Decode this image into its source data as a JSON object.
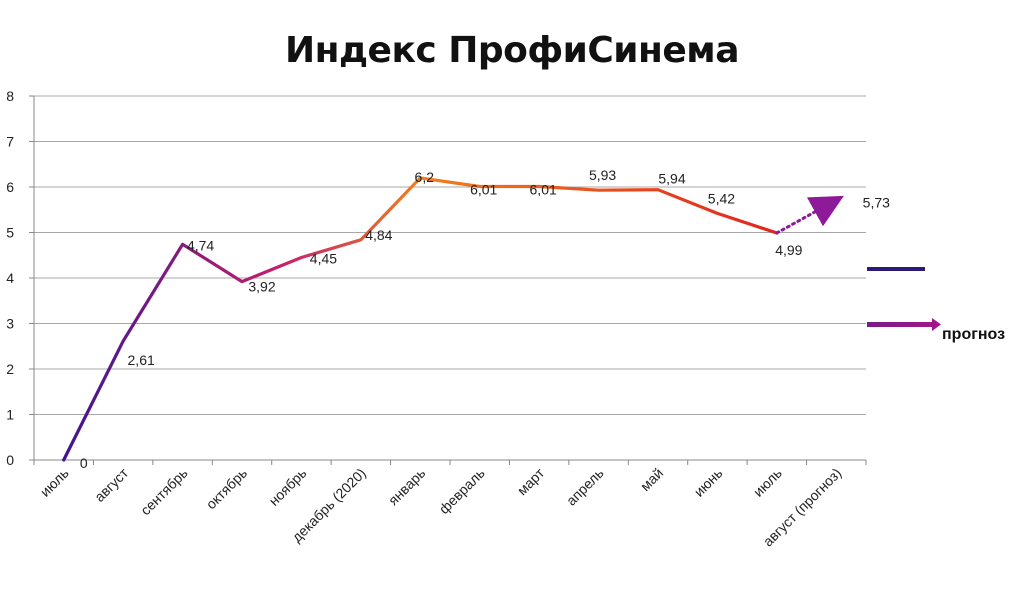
{
  "chart_data": {
    "type": "line",
    "title": "Индекс ПрофиСинема",
    "xlabel": "",
    "ylabel": "",
    "ylim": [
      0,
      8
    ],
    "yticks": [
      "0",
      "1",
      "2",
      "3",
      "4",
      "5",
      "6",
      "7",
      "8"
    ],
    "grid": true,
    "categories": [
      "июль",
      "август",
      "сентябрь",
      "октябрь",
      "ноябрь",
      "декабрь (2020)",
      "январь",
      "февраль",
      "март",
      "апрель",
      "май",
      "июнь",
      "июль",
      "август (прогноз)"
    ],
    "series": [
      {
        "values": [
          0,
          2.61,
          4.74,
          3.92,
          4.45,
          4.84,
          6.2,
          6.01,
          6.01,
          5.93,
          5.94,
          5.42,
          4.99,
          null
        ],
        "labels": [
          "0",
          "2,61",
          "4,74",
          "3,92",
          "4,45",
          "4,84",
          "6,2",
          "6,01",
          "6,01",
          "5,93",
          "5,94",
          "5,42",
          "4,99",
          ""
        ],
        "gradient": [
          "#3d1590",
          "#c21e6e",
          "#f07f1e",
          "#e0241f"
        ]
      },
      {
        "name": "прогноз",
        "values": [
          null,
          null,
          null,
          null,
          null,
          null,
          null,
          null,
          null,
          null,
          null,
          null,
          4.99,
          5.73
        ],
        "labels": [
          "",
          "",
          "",
          "",
          "",
          "",
          "",
          "",
          "",
          "",
          "",
          "",
          "",
          "5,73"
        ],
        "color": "#8e1a9a",
        "dashed": true
      }
    ],
    "legend": {
      "placement": "right",
      "entries": [
        {
          "name": "",
          "color": "#2a1a7a"
        },
        {
          "name": "прогноз",
          "color": "#8e1a9a"
        }
      ]
    }
  }
}
